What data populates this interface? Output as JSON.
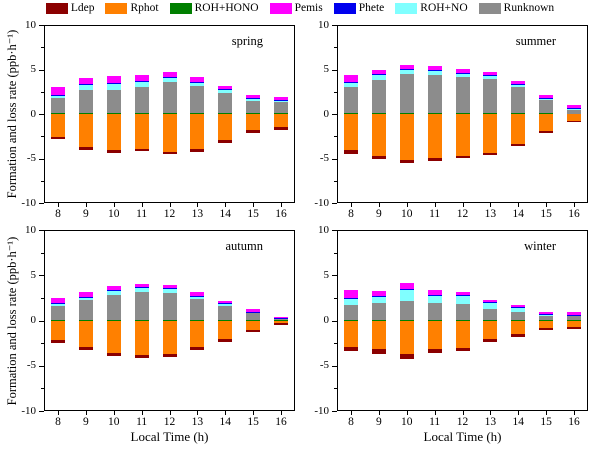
{
  "legend": {
    "items": [
      {
        "label": "Ldep",
        "color": "#8B0000"
      },
      {
        "label": "Rphot",
        "color": "#FF8000"
      },
      {
        "label": "ROH+HONO",
        "color": "#007F00"
      },
      {
        "label": "Pemis",
        "color": "#FF00FF"
      },
      {
        "label": "Phete",
        "color": "#0000EE"
      },
      {
        "label": "ROH+NO",
        "color": "#80FFFF"
      },
      {
        "label": "Runknown",
        "color": "#8C8C8C"
      }
    ]
  },
  "axes": {
    "ylabel": "Formation and loss rate (ppb·h⁻¹)",
    "xlabel": "Local Time (h)",
    "yticks": [
      10,
      5,
      0,
      -5,
      -10
    ],
    "yminor": [
      7.5,
      2.5,
      -2.5,
      -7.5
    ],
    "ylim": [
      -10,
      10
    ]
  },
  "chart_data": [
    {
      "type": "bar",
      "stacked": true,
      "title": "spring",
      "categories": [
        8,
        9,
        10,
        11,
        12,
        13,
        14,
        15,
        16
      ],
      "ylim": [
        -10,
        10
      ],
      "series": [
        {
          "name": "Ldep",
          "values": [
            -0.3,
            -0.3,
            -0.3,
            -0.3,
            -0.3,
            -0.3,
            -0.3,
            -0.25,
            -0.25
          ]
        },
        {
          "name": "Rphot",
          "values": [
            -2.55,
            -3.75,
            -4.1,
            -3.9,
            -4.25,
            -3.95,
            -2.95,
            -1.85,
            -1.5
          ]
        },
        {
          "name": "ROH+HONO",
          "values": [
            0.08,
            0.08,
            0.08,
            0.08,
            0.08,
            0.08,
            0.08,
            0.06,
            0.06
          ]
        },
        {
          "name": "Pemis",
          "values": [
            0.9,
            0.7,
            0.7,
            0.6,
            0.55,
            0.5,
            0.4,
            0.35,
            0.35
          ]
        },
        {
          "name": "Phete",
          "values": [
            0.05,
            0.05,
            0.05,
            0.05,
            0.05,
            0.05,
            0.05,
            0.04,
            0.04
          ]
        },
        {
          "name": "ROH+NO",
          "values": [
            0.35,
            0.6,
            0.75,
            0.65,
            0.5,
            0.45,
            0.35,
            0.25,
            0.2
          ]
        },
        {
          "name": "Runknown",
          "values": [
            1.7,
            2.6,
            2.65,
            2.95,
            3.5,
            3.05,
            2.3,
            1.4,
            1.25
          ]
        }
      ]
    },
    {
      "type": "bar",
      "stacked": true,
      "title": "summer",
      "categories": [
        8,
        9,
        10,
        11,
        12,
        13,
        14,
        15,
        16
      ],
      "ylim": [
        -10,
        10
      ],
      "series": [
        {
          "name": "Ldep",
          "values": [
            -0.35,
            -0.3,
            -0.3,
            -0.3,
            -0.3,
            -0.25,
            -0.25,
            -0.2,
            -0.2
          ]
        },
        {
          "name": "Rphot",
          "values": [
            -4.1,
            -4.75,
            -5.2,
            -4.95,
            -4.7,
            -4.4,
            -3.4,
            -1.9,
            -0.75
          ]
        },
        {
          "name": "ROH+HONO",
          "values": [
            0.1,
            0.1,
            0.1,
            0.1,
            0.1,
            0.1,
            0.08,
            0.06,
            0.05
          ]
        },
        {
          "name": "Pemis",
          "values": [
            0.75,
            0.55,
            0.45,
            0.45,
            0.4,
            0.3,
            0.3,
            0.3,
            0.3
          ]
        },
        {
          "name": "Phete",
          "values": [
            0.05,
            0.05,
            0.05,
            0.05,
            0.05,
            0.05,
            0.05,
            0.04,
            0.05
          ]
        },
        {
          "name": "ROH+NO",
          "values": [
            0.55,
            0.6,
            0.55,
            0.5,
            0.45,
            0.4,
            0.3,
            0.2,
            0.15
          ]
        },
        {
          "name": "Runknown",
          "values": [
            2.95,
            3.7,
            4.35,
            4.25,
            4.05,
            3.85,
            2.95,
            1.5,
            0.45
          ]
        }
      ]
    },
    {
      "type": "bar",
      "stacked": true,
      "title": "autumn",
      "categories": [
        8,
        9,
        10,
        11,
        12,
        13,
        14,
        15,
        16
      ],
      "ylim": [
        -10,
        10
      ],
      "series": [
        {
          "name": "Ldep",
          "values": [
            -0.35,
            -0.35,
            -0.35,
            -0.35,
            -0.35,
            -0.3,
            -0.3,
            -0.22,
            -0.18
          ]
        },
        {
          "name": "Rphot",
          "values": [
            -2.15,
            -2.95,
            -3.55,
            -3.85,
            -3.65,
            -2.95,
            -2.05,
            -1.1,
            -0.3
          ]
        },
        {
          "name": "ROH+HONO",
          "values": [
            0.06,
            0.06,
            0.06,
            0.06,
            0.06,
            0.06,
            0.06,
            0.05,
            0.05
          ]
        },
        {
          "name": "Pemis",
          "values": [
            0.5,
            0.55,
            0.45,
            0.4,
            0.35,
            0.35,
            0.3,
            0.25,
            0.15
          ]
        },
        {
          "name": "Phete",
          "values": [
            0.04,
            0.04,
            0.04,
            0.04,
            0.04,
            0.04,
            0.04,
            0.04,
            0.04
          ]
        },
        {
          "name": "ROH+NO",
          "values": [
            0.35,
            0.4,
            0.45,
            0.45,
            0.45,
            0.35,
            0.3,
            0.15,
            0.07
          ]
        },
        {
          "name": "Runknown",
          "values": [
            1.5,
            2.15,
            2.8,
            3.1,
            3.0,
            2.3,
            1.5,
            0.75,
            0.12
          ]
        }
      ]
    },
    {
      "type": "bar",
      "stacked": true,
      "title": "winter",
      "categories": [
        8,
        9,
        10,
        11,
        12,
        13,
        14,
        15,
        16
      ],
      "ylim": [
        -10,
        10
      ],
      "series": [
        {
          "name": "Ldep",
          "values": [
            -0.45,
            -0.45,
            -0.5,
            -0.4,
            -0.35,
            -0.3,
            -0.3,
            -0.25,
            -0.22
          ]
        },
        {
          "name": "Rphot",
          "values": [
            -2.9,
            -3.2,
            -3.7,
            -3.2,
            -3.0,
            -2.05,
            -1.5,
            -0.8,
            -0.7
          ]
        },
        {
          "name": "ROH+HONO",
          "values": [
            0.05,
            0.05,
            0.05,
            0.05,
            0.05,
            0.05,
            0.05,
            0.05,
            0.05
          ]
        },
        {
          "name": "Pemis",
          "values": [
            0.85,
            0.55,
            0.66,
            0.55,
            0.33,
            0.3,
            0.25,
            0.2,
            0.3
          ]
        },
        {
          "name": "Phete",
          "values": [
            0.05,
            0.05,
            0.05,
            0.05,
            0.05,
            0.05,
            0.05,
            0.05,
            0.05
          ]
        },
        {
          "name": "ROH+NO",
          "values": [
            0.74,
            0.8,
            1.18,
            0.92,
            0.95,
            0.7,
            0.45,
            0.2,
            0.15
          ]
        },
        {
          "name": "Runknown",
          "values": [
            1.65,
            1.85,
            2.15,
            1.85,
            1.8,
            1.2,
            0.9,
            0.45,
            0.4
          ]
        }
      ]
    }
  ]
}
